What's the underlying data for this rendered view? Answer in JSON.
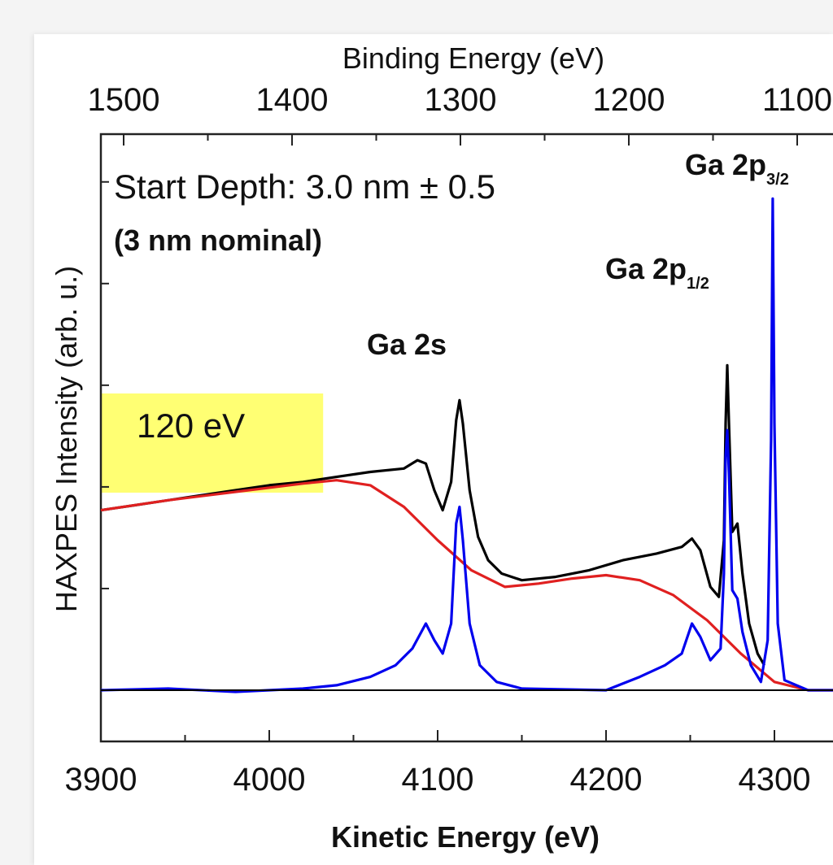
{
  "chart_data": {
    "type": "line",
    "title": "",
    "xlabel": "Kinetic Energy (eV)",
    "x2label": "Binding Energy (eV)",
    "ylabel": "HAXPES Intensity (arb. u.)",
    "xlim": [
      3900,
      4340
    ],
    "x2lim": [
      1500,
      1050
    ],
    "ylim": [
      -0.4,
      3.4
    ],
    "x_ticks": [
      3900,
      4000,
      4100,
      4200,
      4300
    ],
    "x2_ticks": [
      1500,
      1400,
      1300,
      1200,
      1100
    ],
    "grid": false,
    "annotations": {
      "depth_line1": "Start Depth: 3.0 nm ± 0.5",
      "depth_line2": "(3 nm nominal)",
      "highlight_label": "120 eV",
      "highlight_range": [
        3900,
        4032
      ]
    },
    "peaks": [
      {
        "label": "Ga 2s",
        "sub": "",
        "x": 4113
      },
      {
        "label": "Ga 2p",
        "sub": "1/2",
        "x": 4272
      },
      {
        "label": "Ga 2p",
        "sub": "3/2",
        "x": 4299
      }
    ],
    "series": [
      {
        "color": "#000000",
        "points": [
          [
            3900,
            1.08
          ],
          [
            3920,
            1.11
          ],
          [
            3940,
            1.14
          ],
          [
            3960,
            1.17
          ],
          [
            3980,
            1.2
          ],
          [
            4000,
            1.23
          ],
          [
            4020,
            1.25
          ],
          [
            4040,
            1.28
          ],
          [
            4060,
            1.31
          ],
          [
            4080,
            1.33
          ],
          [
            4088,
            1.38
          ],
          [
            4093,
            1.36
          ],
          [
            4098,
            1.2
          ],
          [
            4103,
            1.08
          ],
          [
            4108,
            1.25
          ],
          [
            4111,
            1.62
          ],
          [
            4113,
            1.74
          ],
          [
            4115,
            1.6
          ],
          [
            4119,
            1.2
          ],
          [
            4124,
            0.92
          ],
          [
            4130,
            0.78
          ],
          [
            4138,
            0.7
          ],
          [
            4150,
            0.66
          ],
          [
            4170,
            0.68
          ],
          [
            4190,
            0.72
          ],
          [
            4210,
            0.78
          ],
          [
            4230,
            0.82
          ],
          [
            4245,
            0.86
          ],
          [
            4251,
            0.91
          ],
          [
            4256,
            0.84
          ],
          [
            4262,
            0.62
          ],
          [
            4267,
            0.56
          ],
          [
            4270,
            0.9
          ],
          [
            4271,
            1.6
          ],
          [
            4272,
            1.95
          ],
          [
            4273,
            1.6
          ],
          [
            4275,
            0.95
          ],
          [
            4278,
            1.0
          ],
          [
            4281,
            0.7
          ],
          [
            4285,
            0.4
          ],
          [
            4290,
            0.22
          ],
          [
            4294,
            0.15
          ]
        ]
      },
      {
        "color": "#e02020",
        "points": [
          [
            3900,
            1.08
          ],
          [
            3940,
            1.14
          ],
          [
            3980,
            1.19
          ],
          [
            4020,
            1.24
          ],
          [
            4040,
            1.26
          ],
          [
            4060,
            1.23
          ],
          [
            4080,
            1.1
          ],
          [
            4100,
            0.9
          ],
          [
            4120,
            0.72
          ],
          [
            4140,
            0.62
          ],
          [
            4160,
            0.64
          ],
          [
            4180,
            0.67
          ],
          [
            4200,
            0.69
          ],
          [
            4220,
            0.66
          ],
          [
            4240,
            0.57
          ],
          [
            4260,
            0.42
          ],
          [
            4280,
            0.22
          ],
          [
            4300,
            0.05
          ],
          [
            4320,
            0.0
          ],
          [
            4340,
            0.0
          ]
        ]
      },
      {
        "color": "#0000ee",
        "points": [
          [
            3900,
            0.0
          ],
          [
            3940,
            0.01
          ],
          [
            3980,
            -0.01
          ],
          [
            4020,
            0.01
          ],
          [
            4040,
            0.03
          ],
          [
            4060,
            0.08
          ],
          [
            4075,
            0.15
          ],
          [
            4085,
            0.25
          ],
          [
            4093,
            0.4
          ],
          [
            4098,
            0.3
          ],
          [
            4103,
            0.22
          ],
          [
            4108,
            0.4
          ],
          [
            4111,
            1.0
          ],
          [
            4113,
            1.1
          ],
          [
            4115,
            0.9
          ],
          [
            4119,
            0.4
          ],
          [
            4125,
            0.15
          ],
          [
            4135,
            0.05
          ],
          [
            4150,
            0.01
          ],
          [
            4200,
            0.0
          ],
          [
            4220,
            0.08
          ],
          [
            4235,
            0.15
          ],
          [
            4245,
            0.22
          ],
          [
            4251,
            0.4
          ],
          [
            4256,
            0.32
          ],
          [
            4262,
            0.18
          ],
          [
            4268,
            0.25
          ],
          [
            4270,
            0.7
          ],
          [
            4271,
            1.4
          ],
          [
            4272,
            1.56
          ],
          [
            4273,
            1.3
          ],
          [
            4275,
            0.6
          ],
          [
            4278,
            0.55
          ],
          [
            4281,
            0.35
          ],
          [
            4286,
            0.15
          ],
          [
            4292,
            0.05
          ],
          [
            4296,
            0.3
          ],
          [
            4298,
            1.5
          ],
          [
            4299,
            2.95
          ],
          [
            4300,
            1.6
          ],
          [
            4302,
            0.4
          ],
          [
            4306,
            0.06
          ],
          [
            4320,
            0.0
          ],
          [
            4340,
            0.0
          ]
        ]
      },
      {
        "color": "#000000",
        "points": [
          [
            3900,
            0.0
          ],
          [
            4340,
            0.0
          ]
        ]
      }
    ]
  }
}
